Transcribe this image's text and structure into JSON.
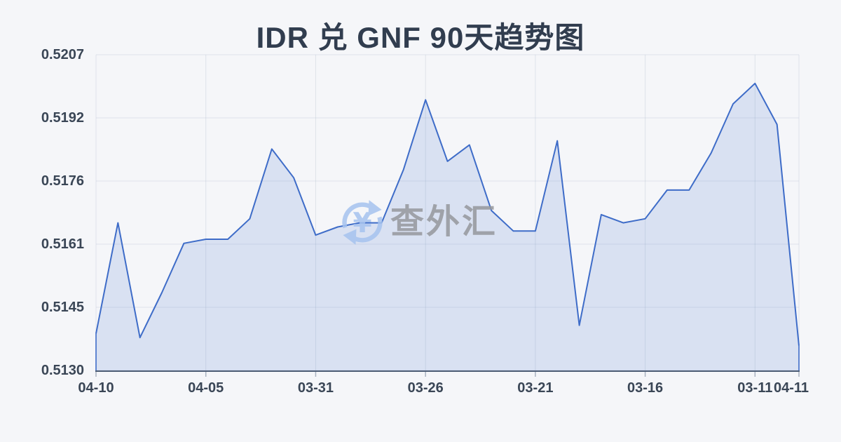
{
  "page": {
    "title": "IDR 兑 GNF 90天趋势图"
  },
  "watermark": {
    "text": "查外汇",
    "icon": "yuan-exchange-refresh-icon",
    "currency_symbol": "¥"
  },
  "colors": {
    "background": "#f5f6f9",
    "title_text": "#313d4f",
    "axis_text": "#3a4656",
    "line": "#3e6cc8",
    "area_fill": "#3e6cc8",
    "area_fill_opacity": 0.15,
    "baseline_axis": "#4d5d75",
    "grid": "#e3e7ee",
    "vgrid": "rgba(170,181,199,0.30)",
    "tick_mark": "#a9b2c0",
    "watermark_blue": "#a6c3ef",
    "watermark_gray": "#96989d"
  },
  "chart_data": {
    "type": "area",
    "title": "IDR 兑 GNF 90天趋势图",
    "xlabel": "",
    "ylabel": "",
    "ylim": [
      0.513,
      0.5207
    ],
    "grid": true,
    "legend": "none",
    "y_tick_labels": [
      "0.5207",
      "0.5192",
      "0.5176",
      "0.5161",
      "0.5145",
      "0.5130"
    ],
    "x_ticks": [
      {
        "index": 0,
        "label": "04-10"
      },
      {
        "index": 5,
        "label": "04-05"
      },
      {
        "index": 10,
        "label": "03-31"
      },
      {
        "index": 15,
        "label": "03-26"
      },
      {
        "index": 20,
        "label": "03-21"
      },
      {
        "index": 25,
        "label": "03-16"
      },
      {
        "index": 30,
        "label": "03-11"
      },
      {
        "index": 32,
        "label": "04-11"
      }
    ],
    "values": [
      0.5139,
      0.5166,
      0.5138,
      0.5149,
      0.5161,
      0.5162,
      0.5162,
      0.5167,
      0.5184,
      0.5177,
      0.5163,
      0.5165,
      0.5166,
      0.5166,
      0.5179,
      0.5196,
      0.5181,
      0.5185,
      0.5169,
      0.5164,
      0.5164,
      0.5186,
      0.5141,
      0.5168,
      0.5166,
      0.5167,
      0.5174,
      0.5174,
      0.5183,
      0.5195,
      0.52,
      0.519,
      0.5136
    ]
  }
}
